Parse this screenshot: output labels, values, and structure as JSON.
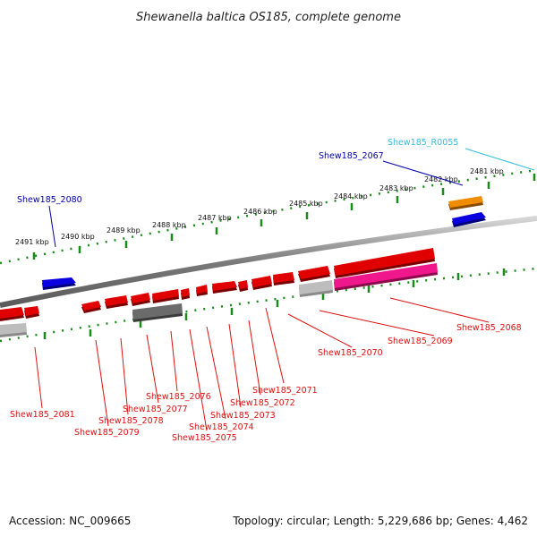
{
  "title": "Shewanella baltica OS185, complete genome",
  "footer": {
    "accession": "Accession: NC_009665",
    "summary": "Topology: circular; Length: 5,229,686 bp; Genes: 4,462"
  },
  "colors": {
    "plus_gene": "#e00000",
    "minus_gene": "#e00000",
    "cds_plus": "#0a00e0",
    "trna": "#f08c00",
    "pink_gene": "#f0168c",
    "grey_gene": "#bdbdbd",
    "dark_grey_gene": "#6b6b6b",
    "tick": "#1a8a1a",
    "red_label": "#dd1111",
    "blue_label": "#0000aa",
    "cyan_label": "#33bbdd"
  },
  "kbp_ticks": [
    "2481 kbp",
    "2482 kbp",
    "2483 kbp",
    "2484 kbp",
    "2485 kbp",
    "2486 kbp",
    "2487 kbp",
    "2488 kbp",
    "2489 kbp",
    "2490 kbp",
    "2491 kbp"
  ],
  "labels": {
    "r0055": "Shew185_R0055",
    "g2067": "Shew185_2067",
    "g2068": "Shew185_2068",
    "g2069": "Shew185_2069",
    "g2070": "Shew185_2070",
    "g2071": "Shew185_2071",
    "g2072": "Shew185_2072",
    "g2073": "Shew185_2073",
    "g2074": "Shew185_2074",
    "g2075": "Shew185_2075",
    "g2076": "Shew185_2076",
    "g2077": "Shew185_2077",
    "g2078": "Shew185_2078",
    "g2079": "Shew185_2079",
    "g2080": "Shew185_2080",
    "g2081": "Shew185_2081"
  }
}
